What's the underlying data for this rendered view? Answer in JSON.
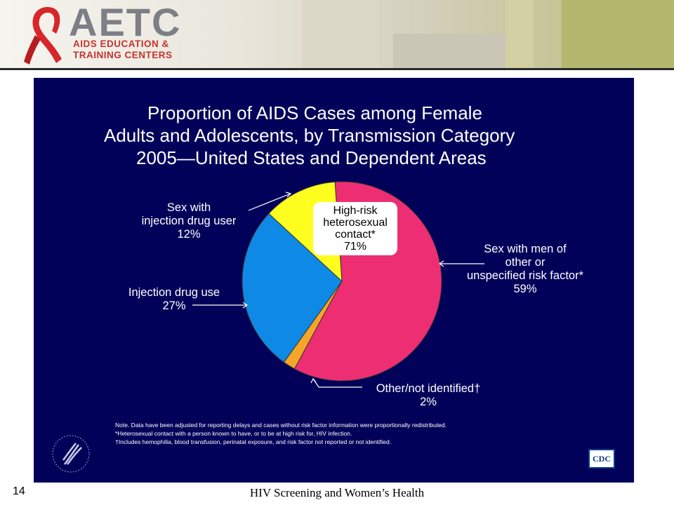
{
  "header": {
    "logo_title": "AETC",
    "logo_line1": "AIDS EDUCATION &",
    "logo_line2": "TRAINING CENTERS"
  },
  "slide": {
    "title_lines": [
      "Proportion of AIDS Cases among Female",
      "Adults and Adolescents, by Transmission Category",
      "2005—United States and Dependent Areas"
    ],
    "notes": [
      "Note. Data have been adjusted for reporting delays and cases without risk factor information were proportionally redistributed.",
      "*Heterosexual contact with a person known to have, or to be at high risk for, HIV infection.",
      "†Includes hemophilia, blood transfusion, perinatal exposure, and risk factor not reported or not identified."
    ],
    "cdc_logo": "CDC"
  },
  "chart_data": {
    "type": "pie",
    "title": "Proportion of AIDS Cases among Female Adults and Adolescents, by Transmission Category 2005—United States and Dependent Areas",
    "slices": [
      {
        "lines": [
          "Sex with men of",
          "other or",
          "unspecified risk factor*"
        ],
        "value": 59,
        "value_label": "59%",
        "color": "#ee2e72"
      },
      {
        "lines": [
          "Other/not identified†"
        ],
        "value": 2,
        "value_label": "2%",
        "color": "#f5a52a"
      },
      {
        "lines": [
          "Injection drug use"
        ],
        "value": 27,
        "value_label": "27%",
        "color": "#0e8ae6"
      },
      {
        "lines": [
          "Sex with",
          "injection drug user"
        ],
        "value": 12,
        "value_label": "12%",
        "color": "#ffff1f"
      }
    ],
    "callout": {
      "lines": [
        "High-risk",
        "heterosexual",
        "contact*"
      ],
      "value_label": "71%"
    }
  },
  "footer": {
    "slide_number": "14",
    "title": "HIV Screening and Women’s Health"
  }
}
